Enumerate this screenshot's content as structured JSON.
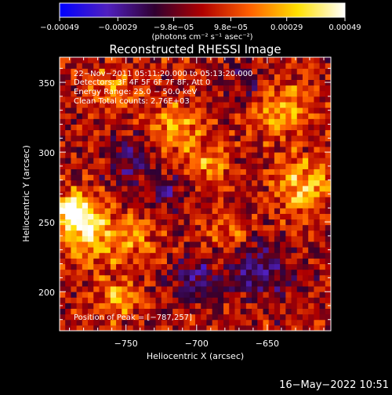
{
  "chart_data": {
    "type": "heatmap",
    "title": "Reconstructed RHESSI Image",
    "xlabel": "Heliocentric X (arcsec)",
    "ylabel": "Heliocentric Y (arcsec)",
    "xlim": [
      -797,
      -605
    ],
    "ylim": [
      172,
      368
    ],
    "x_ticks": [
      -750,
      -700,
      -650
    ],
    "x_tick_labels": [
      "−750",
      "−700",
      "−650"
    ],
    "y_ticks": [
      200,
      250,
      300,
      350
    ],
    "y_tick_labels": [
      "200",
      "250",
      "300",
      "350"
    ],
    "colorbar": {
      "range": [
        -0.00049,
        0.00049
      ],
      "ticks": [
        -0.00049,
        -0.00029,
        -9.8e-05,
        9.8e-05,
        0.00029,
        0.00049
      ],
      "tick_labels": [
        "−0.00049",
        "−0.00029",
        "−9.8e−05",
        "9.8e−05",
        "0.00029",
        "0.00049"
      ],
      "unit_label": "(photons cm⁻² s⁻¹ asec⁻²)",
      "colors": [
        "#0000ff",
        "#5020c0",
        "#300030",
        "#b00000",
        "#ff6000",
        "#ffe000",
        "#ffffff"
      ]
    },
    "annotations": {
      "time": "22−Nov−2011 05:11:20.000 to 05:13:20.000",
      "detectors": "Detectors: 3F 4F 5F 6F 7F 8F, Att 0",
      "energy": "Energy Range: 25.0 − 50.0 keV",
      "clean": "Clean     Total counts: 2.76E+03",
      "peak": "Position of Peak = [−787,257]"
    },
    "peak_position": [
      -787,
      257
    ],
    "intensity_sources": [
      {
        "x": -787,
        "y": 257,
        "sigma": 10,
        "amp": 1.0
      },
      {
        "x": -775,
        "y": 240,
        "sigma": 14,
        "amp": 0.55
      },
      {
        "x": -745,
        "y": 240,
        "sigma": 12,
        "amp": 0.45
      },
      {
        "x": -755,
        "y": 195,
        "sigma": 10,
        "amp": 0.5
      },
      {
        "x": -760,
        "y": 345,
        "sigma": 12,
        "amp": 0.4
      },
      {
        "x": -715,
        "y": 315,
        "sigma": 14,
        "amp": 0.5
      },
      {
        "x": -690,
        "y": 290,
        "sigma": 10,
        "amp": 0.45
      },
      {
        "x": -625,
        "y": 275,
        "sigma": 14,
        "amp": 0.65
      },
      {
        "x": -640,
        "y": 330,
        "sigma": 14,
        "amp": 0.5
      },
      {
        "x": -680,
        "y": 240,
        "sigma": 10,
        "amp": 0.35
      },
      {
        "x": -700,
        "y": 210,
        "sigma": 12,
        "amp": -0.45
      },
      {
        "x": -655,
        "y": 215,
        "sigma": 14,
        "amp": -0.55
      },
      {
        "x": -745,
        "y": 295,
        "sigma": 14,
        "amp": -0.4
      },
      {
        "x": -720,
        "y": 270,
        "sigma": 10,
        "amp": -0.35
      },
      {
        "x": -665,
        "y": 350,
        "sigma": 10,
        "amp": -0.3
      }
    ]
  },
  "footer": {
    "date": "16−May−2022 10:51"
  }
}
